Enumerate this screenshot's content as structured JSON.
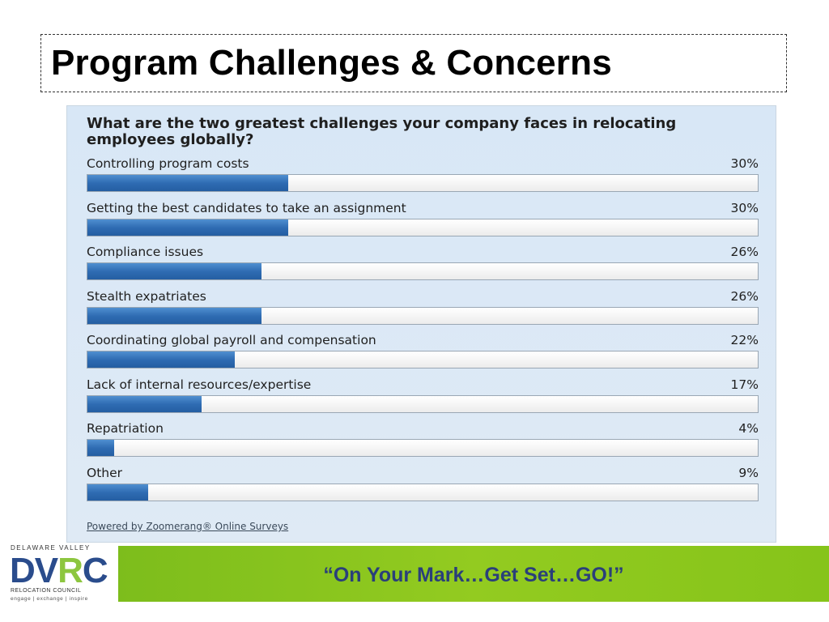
{
  "title": "Program Challenges & Concerns",
  "footer_banner": "“On Your Mark…Get Set…GO!”",
  "logo": {
    "top_text": "DELAWARE VALLEY",
    "main_dv": "DV",
    "main_r": "R",
    "main_c": "C",
    "subtitle": "RELOCATION COUNCIL",
    "tagline": "engage | exchange | inspire"
  },
  "chart_data": {
    "type": "bar",
    "orientation": "horizontal",
    "title": "What are the two greatest challenges your company faces in relocating employees globally?",
    "categories": [
      "Controlling program costs",
      "Getting the best candidates to take an assignment",
      "Compliance issues",
      "Stealth expatriates",
      "Coordinating global payroll and compensation",
      "Lack of internal resources/expertise",
      "Repatriation",
      "Other"
    ],
    "values": [
      30,
      30,
      26,
      26,
      22,
      17,
      4,
      9
    ],
    "value_labels": [
      "30%",
      "30%",
      "26%",
      "26%",
      "22%",
      "17%",
      "4%",
      "9%"
    ],
    "xlim": [
      0,
      100
    ],
    "source": "Powered by Zoomerang® Online Surveys"
  }
}
